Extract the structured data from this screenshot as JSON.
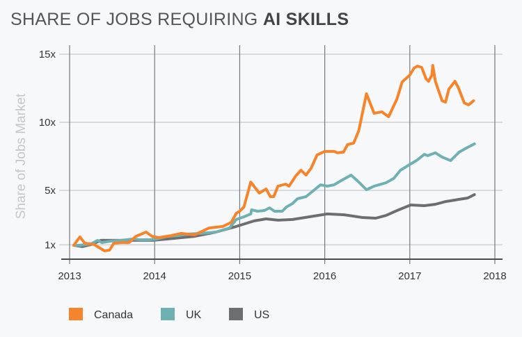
{
  "chart_data": {
    "type": "line",
    "title_prefix": "SHARE OF JOBS REQUIRING ",
    "title_bold": "AI SKILLS",
    "xlabel": "",
    "ylabel": "Share of Jobs Market",
    "xlim": [
      2013,
      2018
    ],
    "ylim": [
      0,
      15
    ],
    "x_ticks": [
      2013,
      2014,
      2015,
      2016,
      2017,
      2018
    ],
    "x_tick_labels": [
      "2013",
      "2014",
      "2015",
      "2016",
      "2017",
      "2018"
    ],
    "y_ticks": [
      1,
      5,
      10,
      15
    ],
    "y_tick_labels": [
      "1x",
      "5x",
      "10x",
      "15x"
    ],
    "grid": true,
    "legend_position": "bottom-left",
    "series": [
      {
        "name": "Canada",
        "color": "#f5842a",
        "points": [
          [
            2013.05,
            0.97
          ],
          [
            2013.12,
            1.58
          ],
          [
            2013.18,
            1.12
          ],
          [
            2013.29,
            1.02
          ],
          [
            2013.41,
            0.56
          ],
          [
            2013.47,
            0.61
          ],
          [
            2013.52,
            1.12
          ],
          [
            2013.61,
            1.17
          ],
          [
            2013.7,
            1.17
          ],
          [
            2013.78,
            1.63
          ],
          [
            2013.9,
            1.94
          ],
          [
            2013.97,
            1.63
          ],
          [
            2014.05,
            1.53
          ],
          [
            2014.19,
            1.68
          ],
          [
            2014.31,
            1.84
          ],
          [
            2014.47,
            1.73
          ],
          [
            2014.64,
            2.24
          ],
          [
            2014.8,
            2.35
          ],
          [
            2014.9,
            2.65
          ],
          [
            2014.96,
            3.32
          ],
          [
            2015.0,
            3.47
          ],
          [
            2015.05,
            3.78
          ],
          [
            2015.13,
            5.61
          ],
          [
            2015.23,
            4.8
          ],
          [
            2015.31,
            5.1
          ],
          [
            2015.36,
            4.54
          ],
          [
            2015.4,
            4.54
          ],
          [
            2015.45,
            5.31
          ],
          [
            2015.54,
            5.46
          ],
          [
            2015.58,
            5.31
          ],
          [
            2015.66,
            6.07
          ],
          [
            2015.72,
            6.48
          ],
          [
            2015.78,
            6.12
          ],
          [
            2015.84,
            6.63
          ],
          [
            2015.91,
            7.6
          ],
          [
            2016.0,
            7.86
          ],
          [
            2016.11,
            7.86
          ],
          [
            2016.15,
            7.76
          ],
          [
            2016.22,
            7.81
          ],
          [
            2016.27,
            8.37
          ],
          [
            2016.34,
            8.47
          ],
          [
            2016.4,
            9.39
          ],
          [
            2016.49,
            12.09
          ],
          [
            2016.58,
            10.66
          ],
          [
            2016.67,
            10.77
          ],
          [
            2016.75,
            10.41
          ],
          [
            2016.85,
            11.73
          ],
          [
            2016.91,
            12.96
          ],
          [
            2017.0,
            13.47
          ],
          [
            2017.05,
            13.98
          ],
          [
            2017.09,
            14.13
          ],
          [
            2017.14,
            14.03
          ],
          [
            2017.19,
            13.21
          ],
          [
            2017.22,
            13.01
          ],
          [
            2017.26,
            13.47
          ],
          [
            2017.27,
            14.18
          ],
          [
            2017.3,
            13.01
          ],
          [
            2017.38,
            11.58
          ],
          [
            2017.42,
            11.48
          ],
          [
            2017.46,
            12.45
          ],
          [
            2017.48,
            12.6
          ],
          [
            2017.53,
            13.01
          ],
          [
            2017.57,
            12.55
          ],
          [
            2017.64,
            11.43
          ],
          [
            2017.69,
            11.28
          ],
          [
            2017.75,
            11.58
          ]
        ]
      },
      {
        "name": "UK",
        "color": "#6fb1b3",
        "points": [
          [
            2013.05,
            0.97
          ],
          [
            2013.12,
            0.97
          ],
          [
            2013.25,
            1.07
          ],
          [
            2013.33,
            1.33
          ],
          [
            2013.38,
            1.17
          ],
          [
            2013.49,
            1.28
          ],
          [
            2013.61,
            1.33
          ],
          [
            2013.74,
            1.43
          ],
          [
            2013.82,
            1.38
          ],
          [
            2013.94,
            1.38
          ],
          [
            2014.02,
            1.43
          ],
          [
            2014.15,
            1.63
          ],
          [
            2014.27,
            1.68
          ],
          [
            2014.39,
            1.79
          ],
          [
            2014.55,
            1.84
          ],
          [
            2014.72,
            1.94
          ],
          [
            2014.88,
            2.24
          ],
          [
            2014.96,
            2.86
          ],
          [
            2015.05,
            3.06
          ],
          [
            2015.13,
            3.27
          ],
          [
            2015.14,
            3.57
          ],
          [
            2015.21,
            3.47
          ],
          [
            2015.29,
            3.52
          ],
          [
            2015.35,
            3.72
          ],
          [
            2015.41,
            3.47
          ],
          [
            2015.5,
            3.47
          ],
          [
            2015.55,
            3.78
          ],
          [
            2015.62,
            4.03
          ],
          [
            2015.68,
            4.39
          ],
          [
            2015.78,
            4.54
          ],
          [
            2015.91,
            5.2
          ],
          [
            2015.95,
            5.41
          ],
          [
            2016.03,
            5.31
          ],
          [
            2016.11,
            5.41
          ],
          [
            2016.19,
            5.71
          ],
          [
            2016.31,
            6.12
          ],
          [
            2016.4,
            5.61
          ],
          [
            2016.49,
            5.05
          ],
          [
            2016.58,
            5.31
          ],
          [
            2016.72,
            5.56
          ],
          [
            2016.81,
            5.87
          ],
          [
            2016.89,
            6.48
          ],
          [
            2017.01,
            6.94
          ],
          [
            2017.09,
            7.24
          ],
          [
            2017.17,
            7.65
          ],
          [
            2017.21,
            7.55
          ],
          [
            2017.3,
            7.76
          ],
          [
            2017.38,
            7.45
          ],
          [
            2017.48,
            7.19
          ],
          [
            2017.58,
            7.81
          ],
          [
            2017.68,
            8.16
          ],
          [
            2017.76,
            8.42
          ]
        ]
      },
      {
        "name": "US",
        "color": "#6d6e70",
        "points": [
          [
            2013.05,
            0.97
          ],
          [
            2013.15,
            0.87
          ],
          [
            2013.25,
            1.02
          ],
          [
            2013.37,
            1.33
          ],
          [
            2013.49,
            1.33
          ],
          [
            2013.65,
            1.33
          ],
          [
            2013.82,
            1.33
          ],
          [
            2013.98,
            1.33
          ],
          [
            2014.23,
            1.48
          ],
          [
            2014.47,
            1.63
          ],
          [
            2014.72,
            1.94
          ],
          [
            2014.96,
            2.35
          ],
          [
            2015.17,
            2.76
          ],
          [
            2015.31,
            2.91
          ],
          [
            2015.45,
            2.81
          ],
          [
            2015.62,
            2.86
          ],
          [
            2015.82,
            3.06
          ],
          [
            2016.03,
            3.27
          ],
          [
            2016.23,
            3.21
          ],
          [
            2016.44,
            3.01
          ],
          [
            2016.6,
            2.96
          ],
          [
            2016.72,
            3.16
          ],
          [
            2016.85,
            3.52
          ],
          [
            2017.01,
            3.93
          ],
          [
            2017.17,
            3.88
          ],
          [
            2017.3,
            3.98
          ],
          [
            2017.42,
            4.18
          ],
          [
            2017.58,
            4.34
          ],
          [
            2017.68,
            4.44
          ],
          [
            2017.76,
            4.69
          ]
        ]
      }
    ]
  }
}
